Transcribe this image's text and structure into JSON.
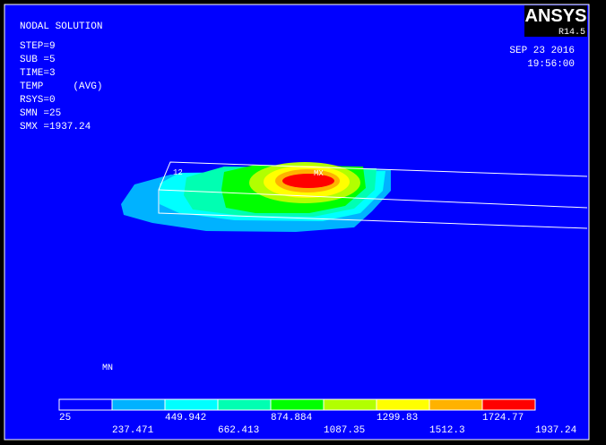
{
  "header": {
    "title": "NODAL SOLUTION",
    "logo": "ANSYS",
    "version": "R14.5",
    "date": "SEP 23 2016",
    "time": "19:56:00"
  },
  "info": [
    "STEP=9",
    "SUB =5",
    "TIME=3",
    "TEMP     (AVG)",
    "RSYS=0",
    "SMN =25",
    "SMX =1937.24"
  ],
  "markers": {
    "min": "MN",
    "max": "MX",
    "node": "12"
  },
  "legend": {
    "colors": [
      "#0000ff",
      "#00b2ff",
      "#00ffff",
      "#00ffb2",
      "#00ff00",
      "#b2ff00",
      "#ffff00",
      "#ffb200",
      "#ff0000"
    ],
    "labels": [
      "25",
      "237.471",
      "449.942",
      "662.413",
      "874.884",
      "1087.35",
      "1299.83",
      "1512.3",
      "1724.77",
      "1937.24"
    ]
  }
}
